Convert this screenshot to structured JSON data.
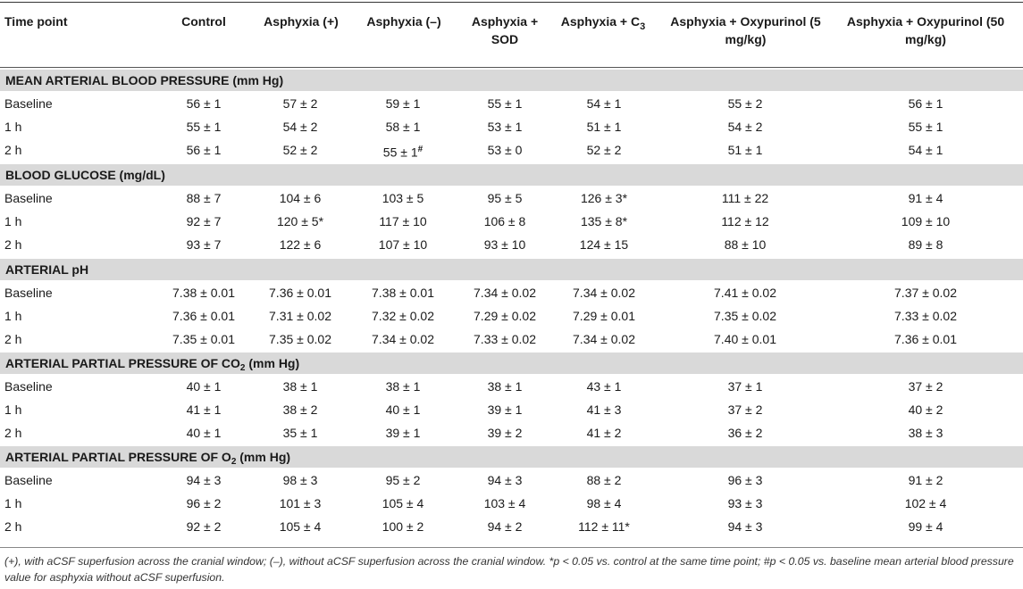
{
  "columns": [
    "Time point",
    "Control",
    "Asphyxia (+)",
    "Asphyxia (–)",
    "Asphyxia + SOD",
    "Asphyxia + C3",
    "Asphyxia + Oxypurinol (5 mg/kg)",
    "Asphyxia + Oxypurinol (50 mg/kg)"
  ],
  "sections": [
    {
      "title": "MEAN ARTERIAL BLOOD PRESSURE (mm Hg)",
      "rows": [
        {
          "label": "Baseline",
          "values": [
            "56 ± 1",
            "57 ± 2",
            "59 ± 1",
            "55 ± 1",
            "54 ± 1",
            "55 ± 2",
            "56 ± 1"
          ]
        },
        {
          "label": "1 h",
          "values": [
            "55 ± 1",
            "54 ± 2",
            "58 ± 1",
            "53 ± 1",
            "51 ± 1",
            "54 ± 2",
            "55 ± 1"
          ]
        },
        {
          "label": "2 h",
          "values": [
            "56 ± 1",
            "52 ± 2",
            "55 ± 1#",
            "53 ± 0",
            "52 ± 2",
            "51 ± 1",
            "54 ± 1"
          ]
        }
      ]
    },
    {
      "title": "BLOOD GLUCOSE (mg/dL)",
      "rows": [
        {
          "label": "Baseline",
          "values": [
            "88 ± 7",
            "104 ± 6",
            "103 ± 5",
            "95 ± 5",
            "126 ± 3*",
            "111 ± 22",
            "91 ± 4"
          ]
        },
        {
          "label": "1 h",
          "values": [
            "92 ± 7",
            "120 ± 5*",
            "117 ± 10",
            "106 ± 8",
            "135 ± 8*",
            "112 ± 12",
            "109 ± 10"
          ]
        },
        {
          "label": "2 h",
          "values": [
            "93 ± 7",
            "122 ± 6",
            "107 ± 10",
            "93 ± 10",
            "124 ± 15",
            "88 ± 10",
            "89 ± 8"
          ]
        }
      ]
    },
    {
      "title": "ARTERIAL pH",
      "rows": [
        {
          "label": "Baseline",
          "values": [
            "7.38 ± 0.01",
            "7.36 ± 0.01",
            "7.38 ± 0.01",
            "7.34 ± 0.02",
            "7.34 ± 0.02",
            "7.41 ± 0.02",
            "7.37 ± 0.02"
          ]
        },
        {
          "label": "1 h",
          "values": [
            "7.36 ± 0.01",
            "7.31 ± 0.02",
            "7.32 ± 0.02",
            "7.29 ± 0.02",
            "7.29 ± 0.01",
            "7.35 ± 0.02",
            "7.33 ± 0.02"
          ]
        },
        {
          "label": "2 h",
          "values": [
            "7.35 ± 0.01",
            "7.35 ± 0.02",
            "7.34 ± 0.02",
            "7.33 ± 0.02",
            "7.34 ± 0.02",
            "7.40 ± 0.01",
            "7.36 ± 0.01"
          ]
        }
      ]
    },
    {
      "title": "ARTERIAL PARTIAL PRESSURE OF CO2 (mm Hg)",
      "rows": [
        {
          "label": "Baseline",
          "values": [
            "40 ± 1",
            "38 ± 1",
            "38 ± 1",
            "38 ± 1",
            "43 ± 1",
            "37 ± 1",
            "37 ± 2"
          ]
        },
        {
          "label": "1 h",
          "values": [
            "41 ± 1",
            "38 ± 2",
            "40 ± 1",
            "39 ± 1",
            "41 ± 3",
            "37 ± 2",
            "40 ± 2"
          ]
        },
        {
          "label": "2 h",
          "values": [
            "40 ± 1",
            "35 ± 1",
            "39 ± 1",
            "39 ± 2",
            "41 ± 2",
            "36 ± 2",
            "38 ± 3"
          ]
        }
      ]
    },
    {
      "title": "ARTERIAL PARTIAL PRESSURE OF O2 (mm Hg)",
      "rows": [
        {
          "label": "Baseline",
          "values": [
            "94 ± 3",
            "98 ± 3",
            "95 ± 2",
            "94 ± 3",
            "88 ± 2",
            "96 ± 3",
            "91 ± 2"
          ]
        },
        {
          "label": "1 h",
          "values": [
            "96 ± 2",
            "101 ± 3",
            "105 ± 4",
            "103 ± 4",
            "98 ± 4",
            "93 ± 3",
            "102 ± 4"
          ]
        },
        {
          "label": "2 h",
          "values": [
            "92 ± 2",
            "105 ± 4",
            "100 ± 2",
            "94 ± 2",
            "112 ± 11*",
            "94 ± 3",
            "99 ± 4"
          ]
        }
      ]
    }
  ],
  "footnote": "(+), with aCSF superfusion across the cranial window; (–), without aCSF superfusion across the cranial window. *p < 0.05 vs. control at the same time point; #p < 0.05 vs. baseline mean arterial blood pressure value for asphyxia without aCSF superfusion."
}
